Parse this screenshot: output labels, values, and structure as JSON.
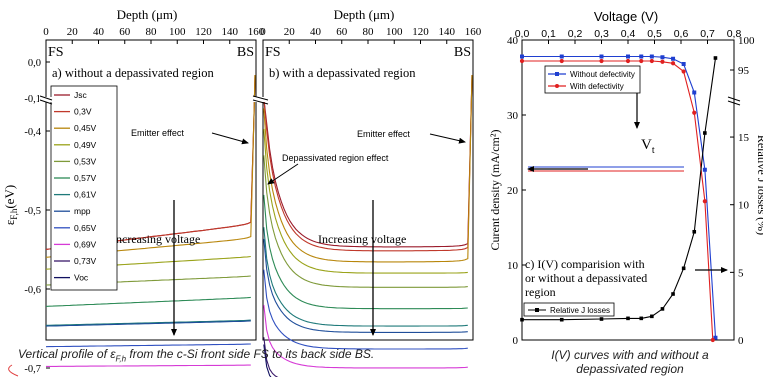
{
  "colors": {
    "Jsc": "#9b1c2c",
    "0,3V": "#c0392b",
    "0,45V": "#b8860b",
    "0,49V": "#9aa31a",
    "0,53V": "#7f9a3a",
    "0,57V": "#2e8b57",
    "0,61V": "#1f7a7a",
    "mpp": "#1f4e9a",
    "0,65V": "#3050c0",
    "0,69V": "#d63bd6",
    "0,73V": "#3a1a6a",
    "Voc": "#101060",
    "without": "#1f3fd0",
    "with": "#e02020",
    "losses": "#000000"
  },
  "caption_left_text": "Vertical profile of ",
  "caption_left_sym": "ε",
  "caption_left_sub": "F,h",
  "caption_left_rest": " from the c-Si front side FS to its back side BS.",
  "caption_right_line1": "I(V) curves with and without a",
  "caption_right_line2": "depassivated region",
  "chart_data": [
    {
      "type": "line",
      "panel_label": "a) without a depassivated region",
      "xlabel": "Depth (μm)",
      "ylabel": "ε",
      "ylabel_sub": "F,h",
      "ylabel_unit": "(eV)",
      "xlim": [
        0,
        160
      ],
      "xticks": [
        "0",
        "20",
        "40",
        "60",
        "80",
        "100",
        "120",
        "140",
        "160"
      ],
      "yticks": [
        "0,0",
        "-0,1",
        "-0,4",
        "-0,5",
        "-0,6",
        "-0,7"
      ],
      "ylim_broken": [
        [
          -0.1,
          0.0
        ],
        [
          -0.75,
          -0.38
        ]
      ],
      "side_left": "FS",
      "side_right": "BS",
      "annotations": [
        "Emitter effect",
        "Increasing voltage"
      ],
      "legend": [
        "Jsc",
        "0,3V",
        "0,45V",
        "0,49V",
        "0,53V",
        "0,57V",
        "0,61V",
        "mpp",
        "0,65V",
        "0,69V",
        "0,73V",
        "Voc"
      ],
      "series": [
        {
          "name": "Jsc",
          "y0": -0.55,
          "y100": -0.53
        },
        {
          "name": "0,3V",
          "y0": -0.55,
          "y100": -0.53
        },
        {
          "name": "0,45V",
          "y0": -0.56,
          "y100": -0.545
        },
        {
          "name": "0,49V",
          "y0": -0.575,
          "y100": -0.565
        },
        {
          "name": "0,53V",
          "y0": -0.595,
          "y100": -0.588
        },
        {
          "name": "0,57V",
          "y0": -0.622,
          "y100": -0.615
        },
        {
          "name": "0,61V",
          "y0": -0.646,
          "y100": -0.642
        },
        {
          "name": "mpp",
          "y0": -0.647,
          "y100": -0.643
        },
        {
          "name": "0,65V",
          "y0": -0.673,
          "y100": -0.671
        },
        {
          "name": "0,69V",
          "y0": -0.698,
          "y100": -0.697
        },
        {
          "name": "0,73V",
          "y0": -0.726,
          "y100": -0.726
        },
        {
          "name": "Voc",
          "y0": -0.731,
          "y100": -0.731
        }
      ]
    },
    {
      "type": "line",
      "panel_label": "b) with a depassivated region",
      "xlabel": "Depth (μm)",
      "xlim": [
        0,
        160
      ],
      "xticks": [
        "0",
        "20",
        "40",
        "60",
        "80",
        "100",
        "120",
        "140",
        "160"
      ],
      "side_left": "FS",
      "side_right": "BS",
      "annotations": [
        "Emitter effect",
        "Depassivated region effect",
        "Increasing voltage"
      ],
      "series": [
        {
          "name": "Jsc",
          "min": -0.547
        },
        {
          "name": "0,3V",
          "min": -0.552
        },
        {
          "name": "0,45V",
          "min": -0.566
        },
        {
          "name": "0,49V",
          "min": -0.58
        },
        {
          "name": "0,53V",
          "min": -0.598
        },
        {
          "name": "0,57V",
          "min": -0.625
        },
        {
          "name": "0,61V",
          "min": -0.647
        },
        {
          "name": "mpp",
          "min": -0.655
        },
        {
          "name": "0,65V",
          "min": -0.676
        },
        {
          "name": "0,69V",
          "min": -0.7
        },
        {
          "name": "0,73V",
          "min": -0.722
        },
        {
          "name": "Voc",
          "min": -0.727
        }
      ]
    },
    {
      "type": "line",
      "panel_label_lines": [
        "c) I(V) comparision with",
        "or without a depassivated",
        "region"
      ],
      "x2label": "Voltage (V)",
      "ylabel": "Curent density (mA/cm²)",
      "y2label": "Relative J losses (%)",
      "xlim": [
        0,
        0.8
      ],
      "ylim": [
        0,
        40
      ],
      "y2_broken": [
        [
          0,
          17
        ],
        [
          90,
          100
        ]
      ],
      "xticks": [
        "0,0",
        "0,1",
        "0,2",
        "0,3",
        "0,4",
        "0,5",
        "0,6",
        "0,7",
        "0,8"
      ],
      "yticks": [
        "0",
        "10",
        "20",
        "30",
        "40"
      ],
      "y2ticks": [
        "0",
        "5",
        "10",
        "15",
        "95",
        "100"
      ],
      "annotations": [
        "V",
        "t"
      ],
      "legend": [
        "Without defectivity",
        "With defectivity"
      ],
      "legend_losses": "Relative J losses",
      "series": [
        {
          "name": "Without defectivity",
          "x": [
            0.0,
            0.15,
            0.3,
            0.4,
            0.45,
            0.49,
            0.53,
            0.57,
            0.61,
            0.65,
            0.69,
            0.73
          ],
          "y": [
            37.8,
            37.8,
            37.8,
            37.8,
            37.8,
            37.8,
            37.7,
            37.5,
            36.8,
            33.0,
            22.7,
            0.3
          ]
        },
        {
          "name": "With defectivity",
          "x": [
            0.0,
            0.15,
            0.3,
            0.4,
            0.45,
            0.49,
            0.53,
            0.57,
            0.61,
            0.65,
            0.69,
            0.72
          ],
          "y": [
            37.2,
            37.2,
            37.2,
            37.2,
            37.2,
            37.2,
            37.1,
            36.9,
            35.8,
            30.3,
            18.5,
            0.0
          ]
        },
        {
          "name": "Relative J losses",
          "x": [
            0.0,
            0.15,
            0.3,
            0.4,
            0.45,
            0.49,
            0.53,
            0.57,
            0.61,
            0.65,
            0.69,
            0.73
          ],
          "y": [
            1.5,
            1.5,
            1.55,
            1.6,
            1.6,
            1.75,
            2.3,
            3.4,
            5.3,
            8.0,
            15.3,
            97.0
          ]
        }
      ]
    }
  ]
}
